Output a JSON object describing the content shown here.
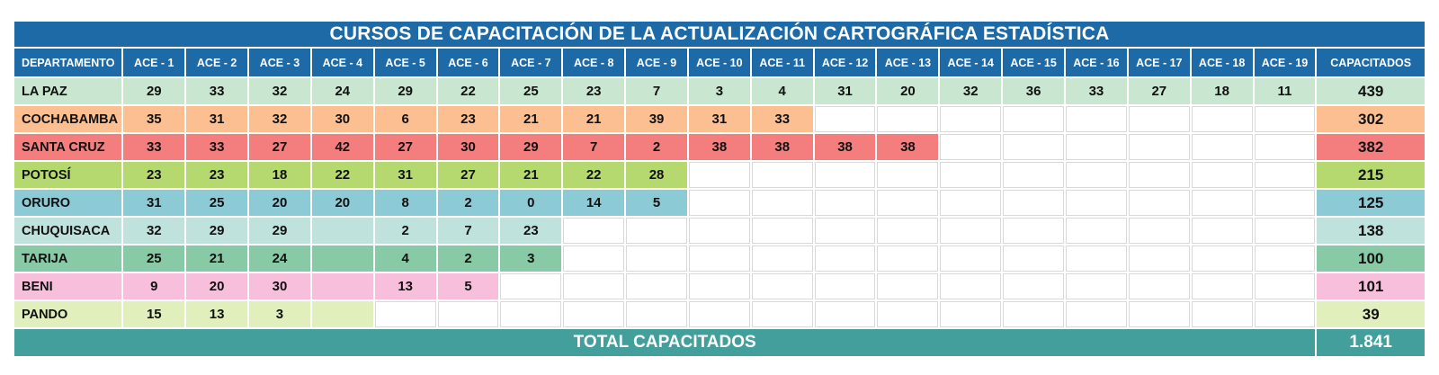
{
  "title": "CURSOS DE CAPACITACIÓN DE LA ACTUALIZACIÓN CARTOGRÁFICA ESTADÍSTICA",
  "headers": {
    "department": "DEPARTAMENTO",
    "ace": [
      "ACE - 1",
      "ACE - 2",
      "ACE - 3",
      "ACE - 4",
      "ACE - 5",
      "ACE - 6",
      "ACE - 7",
      "ACE - 8",
      "ACE - 9",
      "ACE - 10",
      "ACE - 11",
      "ACE - 12",
      "ACE - 13",
      "ACE - 14",
      "ACE - 15",
      "ACE - 16",
      "ACE - 17",
      "ACE - 18",
      "ACE - 19"
    ],
    "total": "CAPACITADOS"
  },
  "rows": [
    {
      "name": "LA PAZ",
      "color": "#c9e6d0",
      "cells": [
        "29",
        "33",
        "32",
        "24",
        "29",
        "22",
        "25",
        "23",
        "7",
        "3",
        "4",
        "31",
        "20",
        "32",
        "36",
        "33",
        "27",
        "18",
        "11"
      ],
      "total": "439"
    },
    {
      "name": "COCHABAMBA",
      "color": "#fbbf92",
      "cells": [
        "35",
        "31",
        "32",
        "30",
        "6",
        "23",
        "21",
        "21",
        "39",
        "31",
        "33",
        null,
        null,
        null,
        null,
        null,
        null,
        null,
        null
      ],
      "total": "302"
    },
    {
      "name": "SANTA CRUZ",
      "color": "#f47e7e",
      "cells": [
        "33",
        "33",
        "27",
        "42",
        "27",
        "30",
        "29",
        "7",
        "2",
        "38",
        "38",
        "38",
        "38",
        null,
        null,
        null,
        null,
        null,
        null
      ],
      "total": "382"
    },
    {
      "name": "POTOSÍ",
      "color": "#b5d96e",
      "cells": [
        "23",
        "23",
        "18",
        "22",
        "31",
        "27",
        "21",
        "22",
        "28",
        null,
        null,
        null,
        null,
        null,
        null,
        null,
        null,
        null,
        null
      ],
      "total": "215"
    },
    {
      "name": "ORURO",
      "color": "#8ccad6",
      "cells": [
        "31",
        "25",
        "20",
        "20",
        "8",
        "2",
        "0",
        "14",
        "5",
        null,
        null,
        null,
        null,
        null,
        null,
        null,
        null,
        null,
        null
      ],
      "total": "125"
    },
    {
      "name": "CHUQUISACA",
      "color": "#bfe2dc",
      "cells": [
        "32",
        "29",
        "29",
        "",
        "2",
        "7",
        "23",
        null,
        null,
        null,
        null,
        null,
        null,
        null,
        null,
        null,
        null,
        null,
        null
      ],
      "total": "138"
    },
    {
      "name": "TARIJA",
      "color": "#88c9a6",
      "cells": [
        "25",
        "21",
        "24",
        "",
        "4",
        "2",
        "3",
        null,
        null,
        null,
        null,
        null,
        null,
        null,
        null,
        null,
        null,
        null,
        null
      ],
      "total": "100"
    },
    {
      "name": "BENI",
      "color": "#f8bfdc",
      "cells": [
        "9",
        "20",
        "30",
        "",
        "13",
        "5",
        null,
        null,
        null,
        null,
        null,
        null,
        null,
        null,
        null,
        null,
        null,
        null,
        null
      ],
      "total": "101"
    },
    {
      "name": "PANDO",
      "color": "#e0efbb",
      "cells": [
        "15",
        "13",
        "3",
        "",
        null,
        null,
        null,
        null,
        null,
        null,
        null,
        null,
        null,
        null,
        null,
        null,
        null,
        null,
        null
      ],
      "total": "39"
    }
  ],
  "footer": {
    "label": "TOTAL CAPACITADOS",
    "value": "1.841"
  }
}
